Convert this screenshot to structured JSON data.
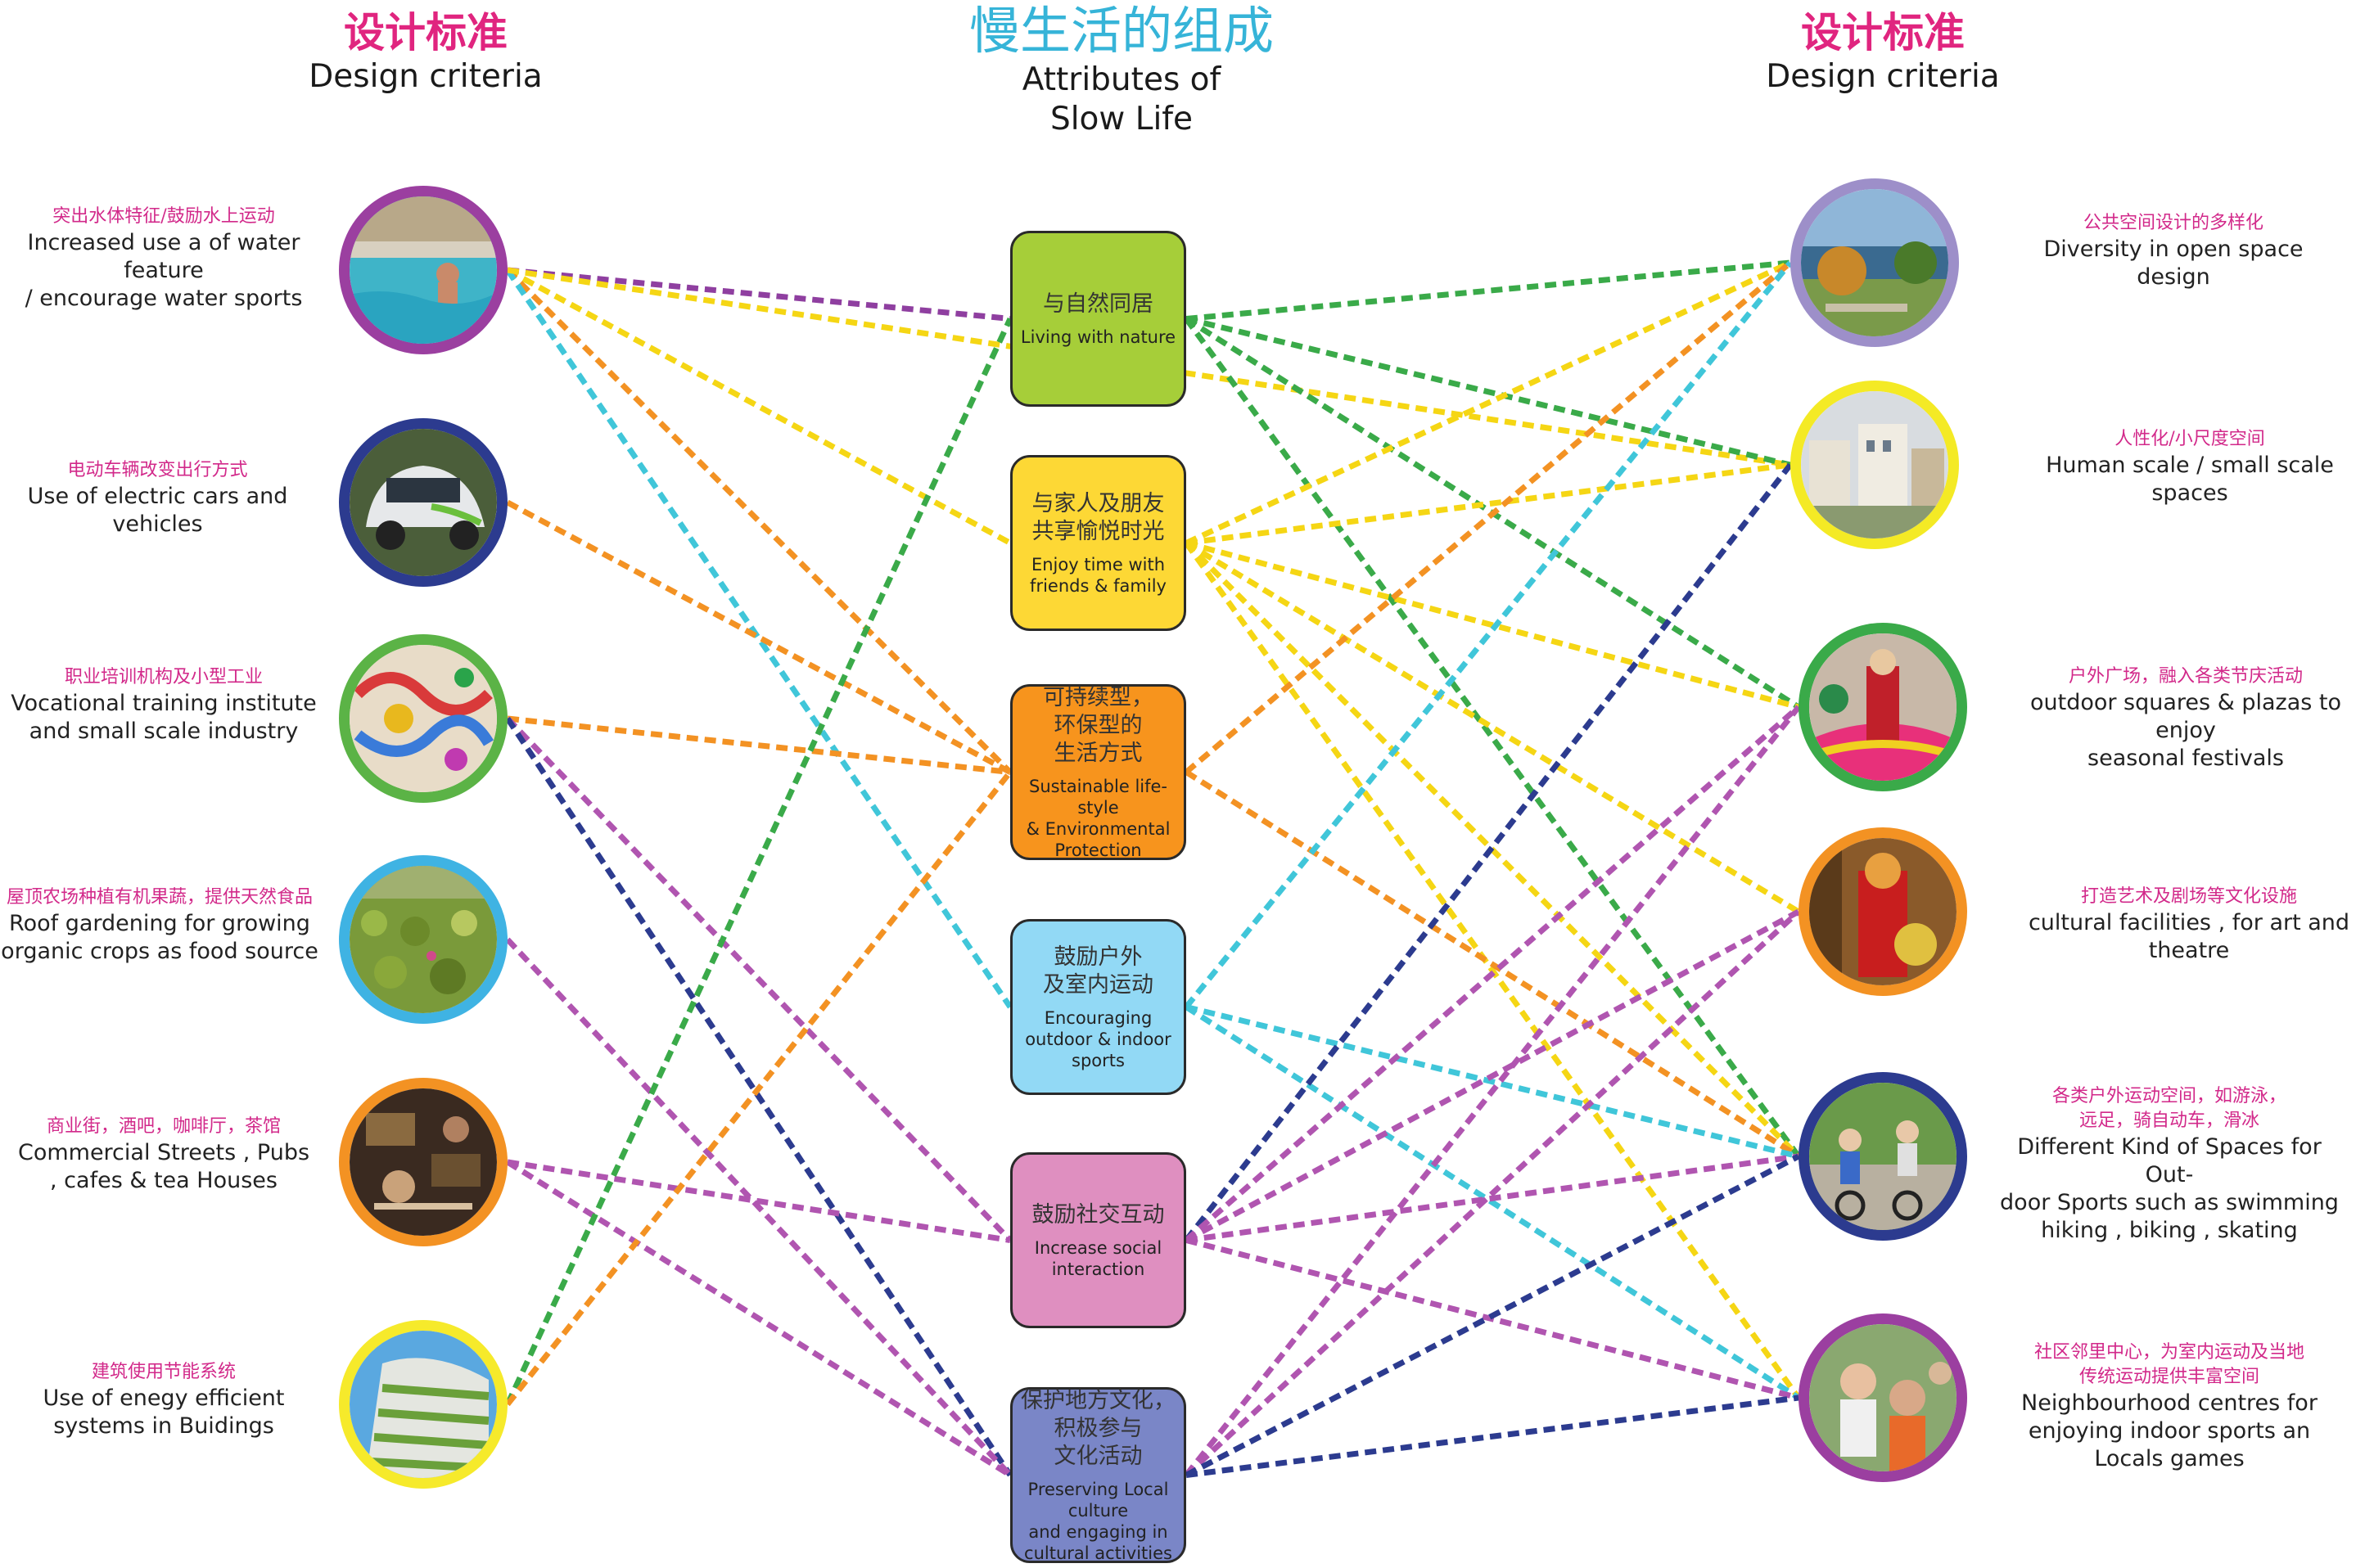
{
  "header": {
    "left_zh": "设计标准",
    "left_en": "Design criteria",
    "center_zh": "慢生活的组成",
    "center_en": "Attributes of\nSlow Life",
    "right_zh": "设计标准",
    "right_en": "Design criteria"
  },
  "left_items": [
    {
      "zh": "突出水体特征/鼓励水上运动",
      "en": "Increased use  a  of water feature\n/ encourage water sports",
      "color": "#9b3fa0",
      "photo": "pool-photo"
    },
    {
      "zh": "电动车辆改变出行方式",
      "en": "Use of electric cars and\nvehicles",
      "color": "#2c3b8f",
      "photo": "electric-car-photo"
    },
    {
      "zh": "职业培训机构及小型工业",
      "en": "Vocational training institute\nand small scale industry",
      "color": "#5bb346",
      "photo": "paper-cut-dragon-photo"
    },
    {
      "zh": "屋顶农场种植有机果蔬，提供天然食品",
      "en": "Roof gardening for growing\norganic crops as food source",
      "color": "#3fb3e3",
      "photo": "roof-garden-photo"
    },
    {
      "zh": "商业街，酒吧，咖啡厅，茶馆",
      "en": "Commercial Streets , Pubs\n, cafes & tea Houses",
      "color": "#f39223",
      "photo": "cafe-photo"
    },
    {
      "zh": "建筑使用节能系统",
      "en": "Use of enegy efficient\nsystems in Buidings",
      "color": "#f6ea2b",
      "photo": "green-building-photo"
    }
  ],
  "attributes": [
    {
      "zh": "与自然同居",
      "en": "Living with nature",
      "color": "#a6ce39"
    },
    {
      "zh": "与家人及朋友\n共享愉悦时光",
      "en": "Enjoy time with\nfriends & family",
      "color": "#fdd835"
    },
    {
      "zh": "可持续型，\n环保型的\n生活方式",
      "en": "Sustainable life-style\n& Environmental\nProtection",
      "color": "#f7941d"
    },
    {
      "zh": "鼓励户外\n及室内运动",
      "en": "Encouraging\noutdoor  & indoor\nsports",
      "color": "#92d9f5"
    },
    {
      "zh": "鼓励社交互动",
      "en": "Increase social\ninteraction",
      "color": "#df8fc0"
    },
    {
      "zh": "保护地方文化，\n积极参与\n文化活动",
      "en": "Preserving Local culture\nand engaging in\ncultural activities",
      "color": "#7a86c7"
    }
  ],
  "right_items": [
    {
      "zh": "公共空间设计的多样化",
      "en": "Diversity in open space design",
      "color": "#9d8fc9",
      "photo": "lake-park-photo"
    },
    {
      "zh": "人性化/小尺度空间",
      "en": "Human scale / small scale spaces",
      "color": "#f4ea25",
      "photo": "small-scale-street-photo"
    },
    {
      "zh": "户外广场，融入各类节庆活动",
      "en": "outdoor squares  & plazas to enjoy\nseasonal festivals",
      "color": "#3aaa49",
      "photo": "festival-photo"
    },
    {
      "zh": "打造艺术及剧场等文化设施",
      "en": "cultural facilities , for art and theatre",
      "color": "#f39223",
      "photo": "opera-performer-photo"
    },
    {
      "zh": "各类户外运动空间，如游泳，\n远足，骑自动车，滑冰",
      "en": "Different Kind of Spaces for Out-\ndoor Sports such as swimming\nhiking , biking , skating",
      "color": "#2c3b8f",
      "photo": "cyclists-photo"
    },
    {
      "zh": "社区邻里中心，为室内运动及当地\n传统运动提供丰富空间",
      "en": "Neighbourhood centres for\nenjoying indoor sports an\nLocals games",
      "color": "#9b3fa0",
      "photo": "community-gathering-photo"
    }
  ],
  "connections": [
    {
      "from": "L1",
      "to": "A1",
      "color": "#8f3fa0"
    },
    {
      "from": "L1",
      "to": "A2",
      "color": "#f5d614"
    },
    {
      "from": "L1",
      "to": "A3",
      "color": "#f39223"
    },
    {
      "from": "L1",
      "to": "A4",
      "color": "#40c6d9"
    },
    {
      "from": "L1",
      "to": "R2",
      "color": "#f5d614"
    },
    {
      "from": "L2",
      "to": "A3",
      "color": "#f39223"
    },
    {
      "from": "L3",
      "to": "A3",
      "color": "#f39223"
    },
    {
      "from": "L3",
      "to": "A5",
      "color": "#b055b0"
    },
    {
      "from": "L3",
      "to": "A6",
      "color": "#2c3b8f"
    },
    {
      "from": "L4",
      "to": "A6",
      "color": "#b055b0"
    },
    {
      "from": "L5",
      "to": "A5",
      "color": "#b055b0"
    },
    {
      "from": "L5",
      "to": "A6",
      "color": "#b055b0"
    },
    {
      "from": "L6",
      "to": "A1",
      "color": "#3aaa49"
    },
    {
      "from": "L6",
      "to": "A3",
      "color": "#f39223"
    },
    {
      "from": "A1",
      "to": "R1",
      "color": "#3aaa49"
    },
    {
      "from": "A1",
      "to": "R2",
      "color": "#3aaa49"
    },
    {
      "from": "A1",
      "to": "R3",
      "color": "#3aaa49"
    },
    {
      "from": "A1",
      "to": "R5",
      "color": "#3aaa49"
    },
    {
      "from": "A2",
      "to": "R1",
      "color": "#f5d614"
    },
    {
      "from": "A2",
      "to": "R2",
      "color": "#f5d614"
    },
    {
      "from": "A2",
      "to": "R3",
      "color": "#f5d614"
    },
    {
      "from": "A2",
      "to": "R4",
      "color": "#f5d614"
    },
    {
      "from": "A2",
      "to": "R5",
      "color": "#f5d614"
    },
    {
      "from": "A2",
      "to": "R6",
      "color": "#f5d614"
    },
    {
      "from": "A3",
      "to": "R1",
      "color": "#f39223"
    },
    {
      "from": "A3",
      "to": "R5",
      "color": "#f39223"
    },
    {
      "from": "A4",
      "to": "R1",
      "color": "#40c6d9"
    },
    {
      "from": "A4",
      "to": "R5",
      "color": "#40c6d9"
    },
    {
      "from": "A4",
      "to": "R6",
      "color": "#40c6d9"
    },
    {
      "from": "A5",
      "to": "R2",
      "color": "#2c3b8f"
    },
    {
      "from": "A5",
      "to": "R3",
      "color": "#b055b0"
    },
    {
      "from": "A5",
      "to": "R4",
      "color": "#b055b0"
    },
    {
      "from": "A5",
      "to": "R5",
      "color": "#b055b0"
    },
    {
      "from": "A5",
      "to": "R6",
      "color": "#b055b0"
    },
    {
      "from": "A6",
      "to": "R3",
      "color": "#b055b0"
    },
    {
      "from": "A6",
      "to": "R4",
      "color": "#b055b0"
    },
    {
      "from": "A6",
      "to": "R5",
      "color": "#2c3b8f"
    },
    {
      "from": "A6",
      "to": "R6",
      "color": "#2c3b8f"
    }
  ]
}
